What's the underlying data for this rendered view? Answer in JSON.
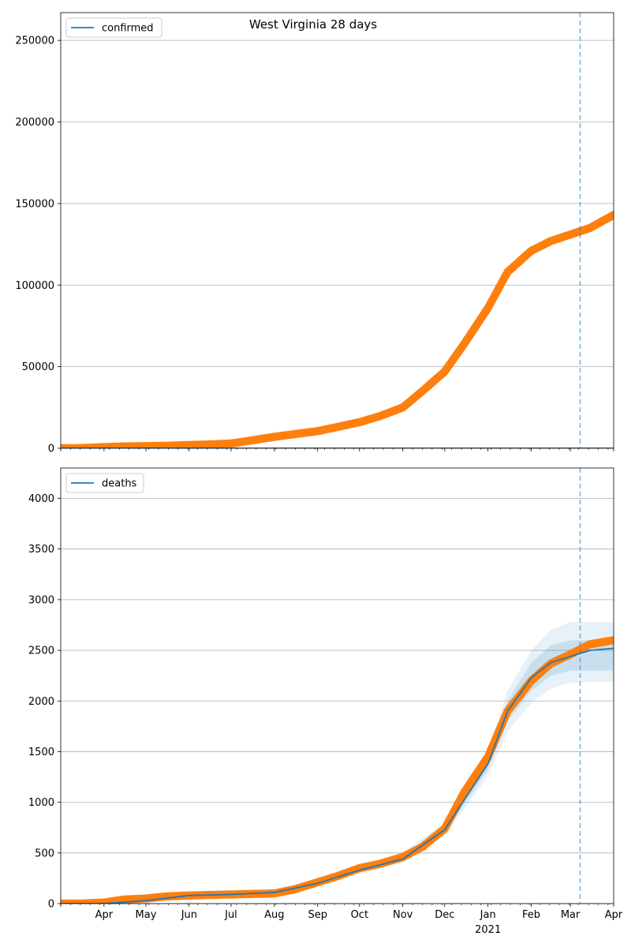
{
  "chart_data": [
    {
      "type": "line",
      "title": "West Virginia 28 days",
      "xlabel": "",
      "ylabel": "",
      "legend": "top-left",
      "grid": "horizontal",
      "xlim": [
        "2020-03-01",
        "2021-04-01"
      ],
      "ylim": [
        0,
        267000
      ],
      "yticks": [
        0,
        50000,
        100000,
        150000,
        200000,
        250000
      ],
      "ytick_labels": [
        "0",
        "50000",
        "100000",
        "150000",
        "200000",
        "250000"
      ],
      "forecast_start": "2021-03-08",
      "series": [
        {
          "name": "confirmed",
          "kind": "forecast-line",
          "color": "#1f77b4",
          "x": [
            "2020-03-01",
            "2020-06-01",
            "2020-09-01",
            "2020-12-01",
            "2021-03-08",
            "2021-04-01"
          ],
          "y": [
            0,
            0,
            0,
            0,
            0,
            0
          ]
        },
        {
          "kind": "observed-markers",
          "color": "#ff7f0e",
          "x": [
            "2020-03-01",
            "2020-03-15",
            "2020-04-01",
            "2020-04-15",
            "2020-05-01",
            "2020-05-15",
            "2020-06-01",
            "2020-06-15",
            "2020-07-01",
            "2020-07-15",
            "2020-08-01",
            "2020-08-15",
            "2020-09-01",
            "2020-09-15",
            "2020-10-01",
            "2020-10-15",
            "2020-11-01",
            "2020-11-15",
            "2020-12-01",
            "2020-12-15",
            "2021-01-01",
            "2021-01-15",
            "2021-02-01",
            "2021-02-15",
            "2021-03-01",
            "2021-03-15",
            "2021-04-01"
          ],
          "y": [
            0,
            100,
            700,
            1100,
            1300,
            1500,
            2000,
            2300,
            2900,
            4700,
            7000,
            8600,
            10500,
            13000,
            16000,
            19500,
            25000,
            35000,
            47000,
            64000,
            86000,
            108000,
            121000,
            127000,
            131000,
            135000,
            143000
          ]
        }
      ]
    },
    {
      "type": "line",
      "title": "",
      "xlabel": "",
      "ylabel": "",
      "legend": "top-left",
      "grid": "horizontal",
      "xlim": [
        "2020-03-01",
        "2021-04-01"
      ],
      "ylim": [
        0,
        4300
      ],
      "yticks": [
        0,
        500,
        1000,
        1500,
        2000,
        2500,
        3000,
        3500,
        4000
      ],
      "ytick_labels": [
        "0",
        "500",
        "1000",
        "1500",
        "2000",
        "2500",
        "3000",
        "3500",
        "4000"
      ],
      "xtick_labels": [
        "Apr",
        "May",
        "Jun",
        "Jul",
        "Aug",
        "Sep",
        "Oct",
        "Nov",
        "Dec",
        "Jan",
        "Feb",
        "Mar",
        "Apr"
      ],
      "xtick_dates": [
        "2020-04-01",
        "2020-05-01",
        "2020-06-01",
        "2020-07-01",
        "2020-08-01",
        "2020-09-01",
        "2020-10-01",
        "2020-11-01",
        "2020-12-01",
        "2021-01-01",
        "2021-02-01",
        "2021-03-01",
        "2021-04-01"
      ],
      "year_label": "2021",
      "forecast_start": "2021-03-08",
      "series": [
        {
          "name": "deaths",
          "kind": "forecast-line",
          "color": "#1f77b4",
          "x": [
            "2020-03-01",
            "2020-04-01",
            "2020-05-01",
            "2020-06-01",
            "2020-07-01",
            "2020-08-01",
            "2020-09-01",
            "2020-10-01",
            "2020-11-01",
            "2020-12-01",
            "2021-01-01",
            "2021-01-15",
            "2021-02-01",
            "2021-02-15",
            "2021-03-01",
            "2021-03-15",
            "2021-04-01"
          ],
          "y": [
            0,
            0,
            30,
            80,
            90,
            110,
            200,
            330,
            440,
            730,
            1380,
            1900,
            2230,
            2380,
            2440,
            2500,
            2520
          ],
          "band_outer_low": [
            0,
            0,
            25,
            70,
            80,
            100,
            180,
            300,
            400,
            670,
            1260,
            1700,
            1980,
            2120,
            2180,
            2190,
            2190
          ],
          "band_outer_high": [
            0,
            5,
            35,
            90,
            100,
            125,
            230,
            380,
            500,
            800,
            1500,
            2100,
            2500,
            2700,
            2780,
            2780,
            2780
          ],
          "band_inner_low": [
            0,
            0,
            28,
            75,
            85,
            105,
            190,
            315,
            420,
            700,
            1320,
            1800,
            2100,
            2250,
            2300,
            2300,
            2300
          ],
          "band_inner_high": [
            0,
            3,
            32,
            85,
            95,
            118,
            215,
            355,
            470,
            760,
            1440,
            2000,
            2380,
            2550,
            2600,
            2600,
            2600
          ]
        },
        {
          "kind": "observed-markers",
          "color": "#ff7f0e",
          "x": [
            "2020-03-01",
            "2020-03-15",
            "2020-04-01",
            "2020-04-15",
            "2020-05-01",
            "2020-05-15",
            "2020-06-01",
            "2020-06-15",
            "2020-07-01",
            "2020-07-15",
            "2020-08-01",
            "2020-08-15",
            "2020-09-01",
            "2020-09-15",
            "2020-10-01",
            "2020-10-15",
            "2020-11-01",
            "2020-11-15",
            "2020-12-01",
            "2020-12-15",
            "2021-01-01",
            "2021-01-15",
            "2021-02-01",
            "2021-02-15",
            "2021-03-01",
            "2021-03-15",
            "2021-04-01"
          ],
          "y": [
            0,
            0,
            10,
            40,
            50,
            70,
            80,
            85,
            90,
            95,
            100,
            140,
            210,
            270,
            350,
            390,
            460,
            560,
            740,
            1100,
            1450,
            1900,
            2200,
            2370,
            2460,
            2560,
            2600
          ]
        }
      ]
    }
  ]
}
